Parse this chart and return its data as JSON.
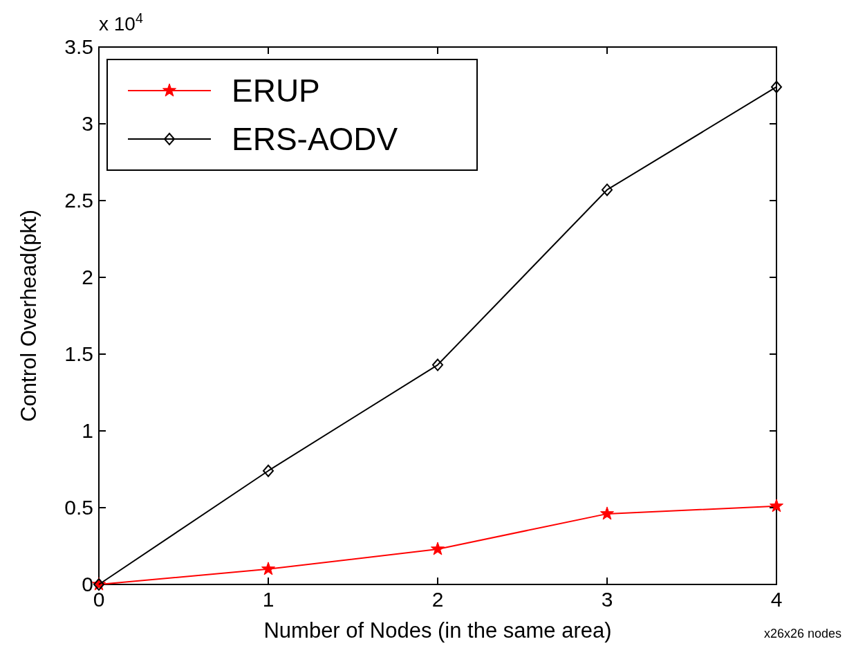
{
  "chart_data": {
    "type": "line",
    "xlabel": "Number of Nodes (in the same area)",
    "ylabel": "Control Overhead(pkt)",
    "x": [
      0,
      1,
      2,
      3,
      4
    ],
    "series": [
      {
        "name": "ERUP",
        "color": "#ff0000",
        "values": [
          0,
          0.1,
          0.23,
          0.46,
          0.51
        ],
        "marker": "star"
      },
      {
        "name": "ERS-AODV",
        "color": "#000000",
        "values": [
          0,
          0.74,
          1.43,
          2.57,
          3.24
        ],
        "marker": "diamond"
      }
    ],
    "xlim": [
      0,
      4
    ],
    "xticks": [
      0,
      1,
      2,
      3,
      4
    ],
    "ylim": [
      0,
      3.5
    ],
    "yticks": [
      0,
      0.5,
      1,
      1.5,
      2,
      2.5,
      3,
      3.5
    ],
    "annotations": [
      "x 10$^{4}$",
      "x26x26 nodes"
    ],
    "grid": false,
    "legend": "top left",
    "line_style": "solid"
  }
}
